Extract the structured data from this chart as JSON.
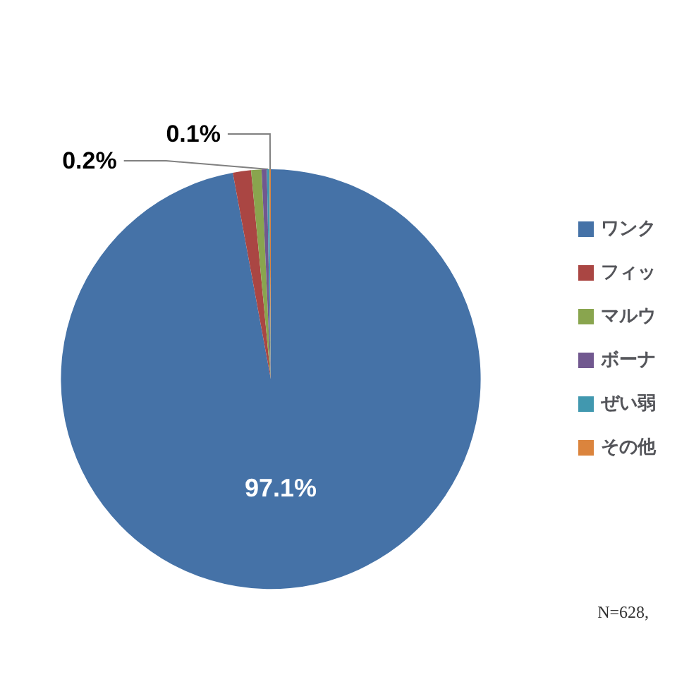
{
  "chart_data": {
    "type": "pie",
    "categories": [
      "ワンク",
      "フィッ",
      "マルウ",
      "ボーナ",
      "ぜい弱",
      "その他"
    ],
    "values": [
      97.1,
      1.4,
      0.8,
      0.4,
      0.2,
      0.1
    ],
    "value_labels": [
      "97.1%",
      null,
      null,
      null,
      "0.2%",
      "0.1%"
    ],
    "colors": [
      "#4572a7",
      "#aa4643",
      "#89a54e",
      "#71588f",
      "#4198af",
      "#db843d"
    ],
    "legend": "right",
    "annotations": [
      "N=628,"
    ]
  }
}
